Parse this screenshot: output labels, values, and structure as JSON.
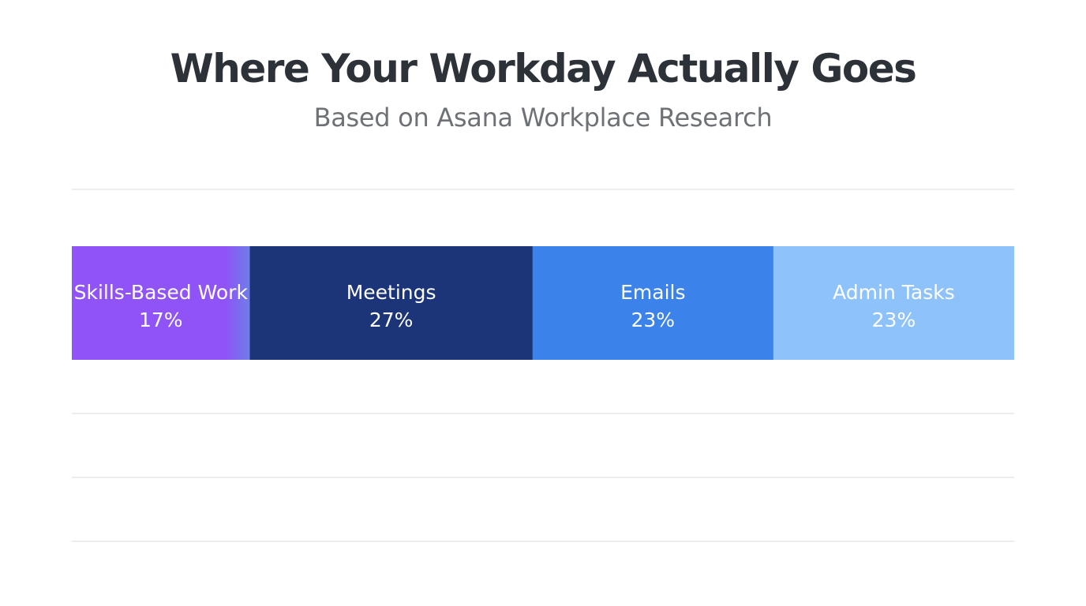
{
  "title": "Where Your Workday Actually Goes",
  "subtitle": "Based on Asana Workplace Research",
  "chart_data": {
    "type": "bar",
    "orientation": "horizontal-stacked",
    "title": "Where Your Workday Actually Goes",
    "subtitle": "Based on Asana Workplace Research",
    "xlabel": "",
    "ylabel": "",
    "grid": true,
    "categories": [
      "Skills-Based Work",
      "Meetings",
      "Emails",
      "Admin Tasks"
    ],
    "values": [
      17,
      27,
      23,
      23
    ],
    "value_labels": [
      "17%",
      "27%",
      "23%",
      "23%"
    ],
    "colors": [
      "#8f53f7",
      "#1b3578",
      "#3b82ea",
      "#8dc2fb"
    ],
    "gradient_edge_color": "#6d7fe6",
    "gridline_color": "#e6e7ea"
  }
}
